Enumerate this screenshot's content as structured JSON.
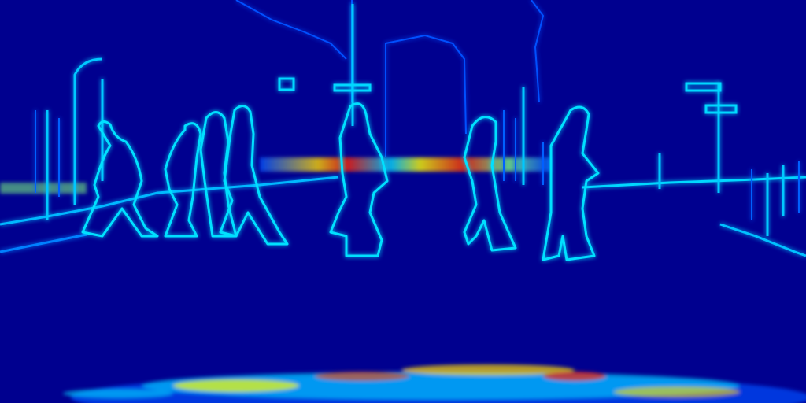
{
  "image": {
    "kind": "edge-heatmap",
    "colormap": "jet",
    "colors": {
      "background": "#00008f",
      "low": "#0000d0",
      "mid_low": "#0050ff",
      "mid": "#00d8ff",
      "mid_high": "#80ff80",
      "high": "#ffff00",
      "peak": "#ff2000"
    }
  }
}
